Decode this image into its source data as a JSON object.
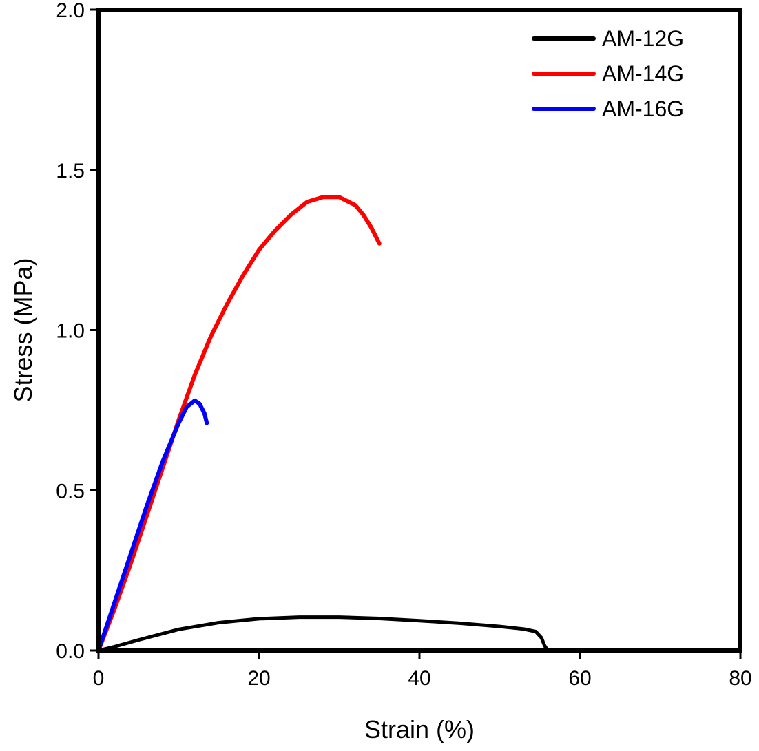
{
  "chart_data": {
    "type": "line",
    "title": "",
    "xlabel": "Strain (%)",
    "ylabel": "Stress (MPa)",
    "xlim": [
      0,
      80
    ],
    "ylim": [
      0,
      2.0
    ],
    "xticks": [
      0,
      20,
      40,
      60,
      80
    ],
    "xtick_labels": [
      "0",
      "20",
      "40",
      "60",
      "80"
    ],
    "yticks": [
      0,
      0.5,
      1.0,
      1.5,
      2.0
    ],
    "ytick_labels": [
      "0.0",
      "0.5",
      "1.0",
      "1.5",
      "2.0"
    ],
    "grid": false,
    "legend_position": "top-right",
    "series": [
      {
        "name": "AM-12G",
        "color": "#000000",
        "x": [
          0,
          2,
          5,
          10,
          15,
          20,
          25,
          30,
          35,
          40,
          45,
          50,
          53,
          54.5,
          55.2,
          55.6,
          56
        ],
        "y": [
          0,
          0.012,
          0.033,
          0.066,
          0.087,
          0.099,
          0.104,
          0.104,
          0.1,
          0.093,
          0.085,
          0.075,
          0.067,
          0.059,
          0.04,
          0.015,
          0
        ]
      },
      {
        "name": "AM-14G",
        "color": "#ff0000",
        "x": [
          0,
          2,
          4,
          6,
          8,
          10,
          12,
          14,
          16,
          18,
          20,
          22,
          24,
          26,
          28,
          30,
          32,
          33,
          34,
          35
        ],
        "y": [
          0,
          0.13,
          0.27,
          0.42,
          0.57,
          0.72,
          0.86,
          0.98,
          1.08,
          1.17,
          1.25,
          1.31,
          1.36,
          1.4,
          1.415,
          1.415,
          1.39,
          1.36,
          1.32,
          1.27
        ]
      },
      {
        "name": "AM-16G",
        "color": "#0000ff",
        "x": [
          0,
          2,
          4,
          6,
          8,
          10,
          11,
          12,
          12.6,
          13.2,
          13.5
        ],
        "y": [
          0,
          0.15,
          0.3,
          0.45,
          0.59,
          0.71,
          0.76,
          0.78,
          0.77,
          0.74,
          0.71
        ]
      }
    ]
  }
}
